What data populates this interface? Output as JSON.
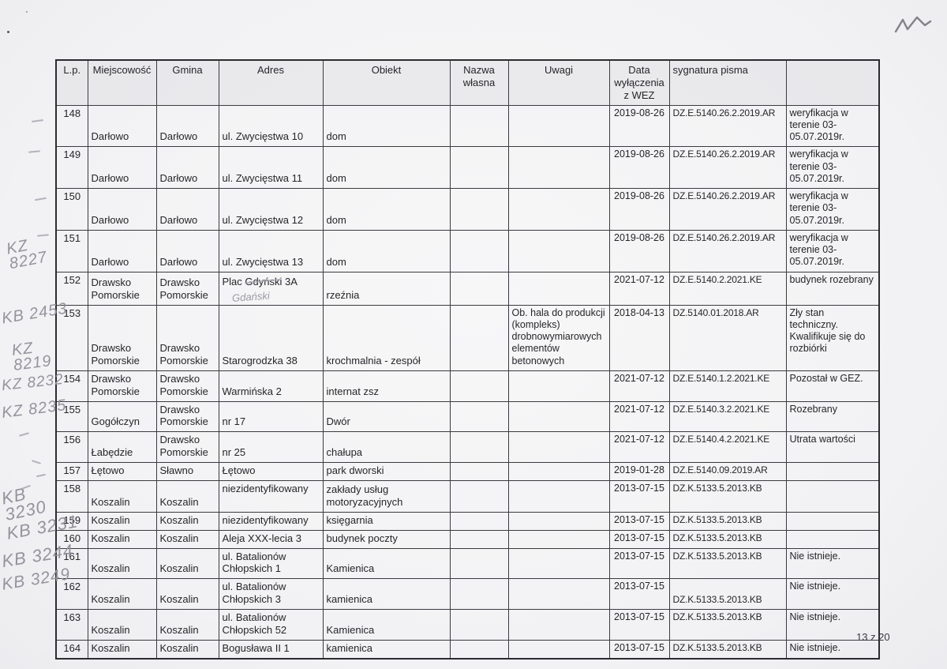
{
  "page": {
    "footer": "13 z 20"
  },
  "table": {
    "columns": [
      {
        "key": "lp",
        "label": "L.p."
      },
      {
        "key": "miejscowosc",
        "label": "Miejscowość"
      },
      {
        "key": "gmina",
        "label": "Gmina"
      },
      {
        "key": "adres",
        "label": "Adres"
      },
      {
        "key": "obiekt",
        "label": "Obiekt"
      },
      {
        "key": "nazwa",
        "label": "Nazwa własna"
      },
      {
        "key": "uwagi",
        "label": "Uwagi"
      },
      {
        "key": "data",
        "label": "Data wyłączenia z WEZ"
      },
      {
        "key": "sygnatura",
        "label": "sygnatura pisma"
      },
      {
        "key": "status",
        "label": ""
      }
    ],
    "rows": [
      {
        "lp": "148",
        "miejscowosc": "Darłowo",
        "gmina": "Darłowo",
        "adres": "ul. Zwycięstwa 10",
        "obiekt": "dom",
        "nazwa": "",
        "uwagi": "",
        "data": "2019-08-26",
        "sygnatura": "DZ.E.5140.26.2.2019.AR",
        "status": "weryfikacja w terenie 03-05.07.2019r."
      },
      {
        "lp": "149",
        "miejscowosc": "Darłowo",
        "gmina": "Darłowo",
        "adres": "ul. Zwycięstwa 11",
        "obiekt": "dom",
        "nazwa": "",
        "uwagi": "",
        "data": "2019-08-26",
        "sygnatura": "DZ.E.5140.26.2.2019.AR",
        "status": "weryfikacja w terenie 03-05.07.2019r."
      },
      {
        "lp": "150",
        "miejscowosc": "Darłowo",
        "gmina": "Darłowo",
        "adres": "ul. Zwycięstwa 12",
        "obiekt": "dom",
        "nazwa": "",
        "uwagi": "",
        "data": "2019-08-26",
        "sygnatura": "DZ.E.5140.26.2.2019.AR",
        "status": "weryfikacja w terenie 03-05.07.2019r."
      },
      {
        "lp": "151",
        "miejscowosc": "Darłowo",
        "gmina": "Darłowo",
        "adres": "ul. Zwycięstwa 13",
        "obiekt": "dom",
        "nazwa": "",
        "uwagi": "",
        "data": "2019-08-26",
        "sygnatura": "DZ.E.5140.26.2.2019.AR",
        "status": "weryfikacja w terenie 03-05.07.2019r."
      },
      {
        "lp": "152",
        "miejscowosc": "Drawsko Pomorskie",
        "gmina": "Drawsko Pomorskie",
        "adres": "Plac Gdyński 3A",
        "adres_note": "Gdański",
        "obiekt": "rzeźnia",
        "nazwa": "",
        "uwagi": "",
        "data": "2021-07-12",
        "sygnatura": "DZ.E.5140.2.2021.KE",
        "status": "budynek rozebrany"
      },
      {
        "lp": "153",
        "miejscowosc": "Drawsko Pomorskie",
        "gmina": "Drawsko Pomorskie",
        "adres": "Starogrodzka 38",
        "obiekt": "krochmalnia - zespół",
        "nazwa": "",
        "uwagi": "Ob. hala do produkcji (kompleks) drobnowymiarowych elementów betonowych",
        "data": "2018-04-13",
        "sygnatura": "DZ.5140.01.2018.AR",
        "status": "Zły stan techniczny. Kwalifikuje się do rozbiórki"
      },
      {
        "lp": "154",
        "miejscowosc": "Drawsko Pomorskie",
        "gmina": "Drawsko Pomorskie",
        "adres": "Warmińska 2",
        "obiekt": "internat zsz",
        "nazwa": "",
        "uwagi": "",
        "data": "2021-07-12",
        "sygnatura": "DZ.E.5140.1.2.2021.KE",
        "status": "Pozostał w GEZ."
      },
      {
        "lp": "155",
        "miejscowosc": "Gogółczyn",
        "gmina": "Drawsko Pomorskie",
        "adres": "nr 17",
        "obiekt": "Dwór",
        "nazwa": "",
        "uwagi": "",
        "data": "2021-07-12",
        "sygnatura": "DZ.E.5140.3.2.2021.KE",
        "status": "Rozebrany"
      },
      {
        "lp": "156",
        "miejscowosc": "Łabędzie",
        "gmina": "Drawsko Pomorskie",
        "adres": "nr 25",
        "obiekt": "chałupa",
        "nazwa": "",
        "uwagi": "",
        "data": "2021-07-12",
        "sygnatura": "DZ.E.5140.4.2.2021.KE",
        "status": "Utrata wartości"
      },
      {
        "lp": "157",
        "miejscowosc": "Łętowo",
        "gmina": "Sławno",
        "adres": "Łętowo",
        "obiekt": "park dworski",
        "nazwa": "",
        "uwagi": "",
        "data": "2019-01-28",
        "sygnatura": "DZ.E.5140.09.2019.AR",
        "status": ""
      },
      {
        "lp": "158",
        "miejscowosc": "Koszalin",
        "gmina": "Koszalin",
        "adres": "niezidentyfikowany",
        "obiekt": "zakłady usług motoryzacyjnych",
        "nazwa": "",
        "uwagi": "",
        "data": "2013-07-15",
        "sygnatura": "DZ.K.5133.5.2013.KB",
        "status": ""
      },
      {
        "lp": "159",
        "miejscowosc": "Koszalin",
        "gmina": "Koszalin",
        "adres": "niezidentyfikowany",
        "obiekt": "księgarnia",
        "nazwa": "",
        "uwagi": "",
        "data": "2013-07-15",
        "sygnatura": "DZ.K.5133.5.2013.KB",
        "status": ""
      },
      {
        "lp": "160",
        "miejscowosc": "Koszalin",
        "gmina": "Koszalin",
        "adres": "Aleja XXX-lecia 3",
        "obiekt": "budynek poczty",
        "nazwa": "",
        "uwagi": "",
        "data": "2013-07-15",
        "sygnatura": "DZ.K.5133.5.2013.KB",
        "status": ""
      },
      {
        "lp": "161",
        "miejscowosc": "Koszalin",
        "gmina": "Koszalin",
        "adres": "ul. Batalionów Chłopskich 1",
        "obiekt": "Kamienica",
        "nazwa": "",
        "uwagi": "",
        "data": "2013-07-15",
        "sygnatura": "DZ.K.5133.5.2013.KB",
        "status": "Nie istnieje."
      },
      {
        "lp": "162",
        "miejscowosc": "Koszalin",
        "gmina": "Koszalin",
        "adres": "ul. Batalionów Chłopskich 3",
        "obiekt": "kamienica",
        "nazwa": "",
        "uwagi": "",
        "data": "2013-07-15",
        "sygnatura": "DZ.K.5133.5.2013.KB",
        "status": "Nie istnieje."
      },
      {
        "lp": "163",
        "miejscowosc": "Koszalin",
        "gmina": "Koszalin",
        "adres": "ul. Batalionów Chłopskich 52",
        "obiekt": "Kamienica",
        "nazwa": "",
        "uwagi": "",
        "data": "2013-07-15",
        "sygnatura": "DZ.K.5133.5.2013.KB",
        "status": "Nie istnieje."
      },
      {
        "lp": "164",
        "miejscowosc": "Koszalin",
        "gmina": "Koszalin",
        "adres": "Bogusława II 1",
        "obiekt": "kamienica",
        "nazwa": "",
        "uwagi": "",
        "data": "2013-07-15",
        "sygnatura": "DZ.K.5133.5.2013.KB",
        "status": "Nie istnieje."
      }
    ]
  },
  "annotations": {
    "margin_notes": [
      {
        "text": "KZ\n8227"
      },
      {
        "text": "KB 2453"
      },
      {
        "text": "KZ\n 8219"
      },
      {
        "text": "KZ 8232"
      },
      {
        "text": "KZ 8235"
      },
      {
        "text": "KB\n 3230"
      },
      {
        "text": "KB 3231"
      },
      {
        "text": "KB 3244"
      },
      {
        "text": "KB 3249"
      }
    ]
  }
}
